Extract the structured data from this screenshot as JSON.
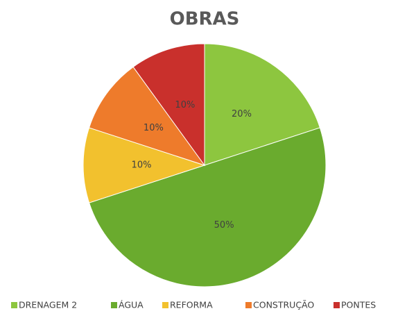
{
  "chart_data": {
    "type": "pie",
    "title": "OBRAS",
    "categories": [
      "DRENAGEM 2",
      "ÁGUA",
      "REFORMA",
      "CONSTRUÇÃO",
      "PONTES"
    ],
    "values": [
      20,
      50,
      10,
      10,
      10
    ],
    "value_labels": [
      "20%",
      "50%",
      "10%",
      "10%",
      "10%"
    ],
    "colors": [
      "#8dc63f",
      "#6aab2e",
      "#f2c12e",
      "#ee7b2b",
      "#c9302c"
    ],
    "legend": "bottom"
  }
}
